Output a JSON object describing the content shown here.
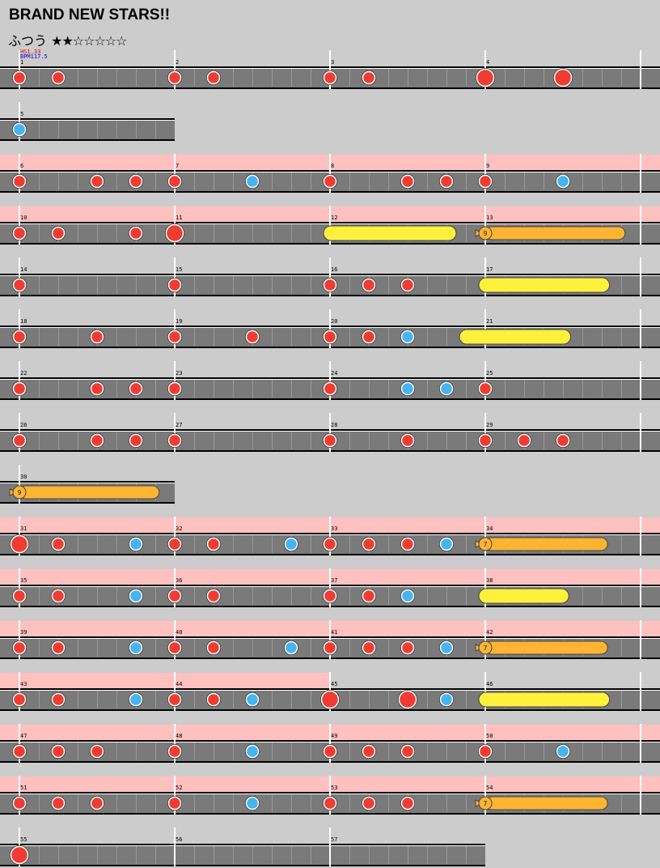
{
  "song": {
    "title": "BRAND NEW STARS!!",
    "difficulty_label": "ふつう",
    "stars_text": "★★☆☆☆☆☆",
    "stars_filled": 2,
    "stars_total": 7,
    "hs_text": "HS1.33",
    "bpm_text": "BPM117.5"
  },
  "colors": {
    "background": "#cccccc",
    "lane": "#7a7a7a",
    "gogo_band": "#ffc0c0",
    "don": "#f03c32",
    "ka": "#46b4f0",
    "drumroll": "#ffb432",
    "balloon_or_yellow_roll": "#fff03c"
  },
  "chart_data": {
    "type": "taiko_score",
    "beats_per_measure": 4,
    "subdivisions_per_measure": 8,
    "measures_per_row": 4,
    "note_types": [
      "don",
      "ka",
      "big_don",
      "drumroll",
      "big_drumroll",
      "balloon"
    ],
    "rows": [
      {
        "measures": [
          1,
          2,
          3,
          4
        ],
        "gogo_measures": 0,
        "notes": [
          {
            "m": 1,
            "b": 0,
            "t": "don"
          },
          {
            "m": 1,
            "b": 1,
            "t": "don"
          },
          {
            "m": 2,
            "b": 0,
            "t": "don"
          },
          {
            "m": 2,
            "b": 1,
            "t": "don"
          },
          {
            "m": 3,
            "b": 0,
            "t": "don"
          },
          {
            "m": 3,
            "b": 1,
            "t": "don"
          },
          {
            "m": 4,
            "b": 0,
            "t": "big_don"
          },
          {
            "m": 4,
            "b": 2,
            "t": "big_don"
          }
        ],
        "rolls": []
      },
      {
        "measures": [
          5
        ],
        "gogo_measures": 0,
        "notes": [
          {
            "m": 5,
            "b": 0,
            "t": "ka"
          }
        ],
        "rolls": []
      },
      {
        "measures": [
          6,
          7,
          8,
          9
        ],
        "gogo_measures": 4,
        "notes": [
          {
            "m": 6,
            "b": 0,
            "t": "don"
          },
          {
            "m": 6,
            "b": 2,
            "t": "don"
          },
          {
            "m": 6,
            "b": 3,
            "t": "don"
          },
          {
            "m": 7,
            "b": 0,
            "t": "don"
          },
          {
            "m": 7,
            "b": 2,
            "t": "ka"
          },
          {
            "m": 8,
            "b": 0,
            "t": "don"
          },
          {
            "m": 8,
            "b": 2,
            "t": "don"
          },
          {
            "m": 8,
            "b": 3,
            "t": "don"
          },
          {
            "m": 9,
            "b": 0,
            "t": "don"
          },
          {
            "m": 9,
            "b": 2,
            "t": "ka"
          }
        ],
        "rolls": []
      },
      {
        "measures": [
          10,
          11,
          12,
          13
        ],
        "gogo_measures": 4,
        "notes": [
          {
            "m": 10,
            "b": 0,
            "t": "don"
          },
          {
            "m": 10,
            "b": 1,
            "t": "don"
          },
          {
            "m": 10,
            "b": 3,
            "t": "don"
          },
          {
            "m": 11,
            "b": 0,
            "t": "big_don"
          }
        ],
        "rolls": [
          {
            "m": 12,
            "b": 0,
            "len": 3.25,
            "t": "big_drumroll",
            "color": "yellow"
          },
          {
            "m": 13,
            "b": 0,
            "len": 3.6,
            "t": "balloon",
            "count": "9"
          }
        ]
      },
      {
        "measures": [
          14,
          15,
          16,
          17
        ],
        "gogo_measures": 0,
        "notes": [
          {
            "m": 14,
            "b": 0,
            "t": "don"
          },
          {
            "m": 15,
            "b": 0,
            "t": "don"
          },
          {
            "m": 16,
            "b": 0,
            "t": "don"
          },
          {
            "m": 16,
            "b": 1,
            "t": "don"
          },
          {
            "m": 16,
            "b": 2,
            "t": "don"
          }
        ],
        "rolls": [
          {
            "m": 17,
            "b": 0,
            "len": 3.2,
            "t": "big_drumroll",
            "color": "yellow"
          }
        ]
      },
      {
        "measures": [
          18,
          19,
          20,
          21
        ],
        "gogo_measures": 0,
        "notes": [
          {
            "m": 18,
            "b": 0,
            "t": "don"
          },
          {
            "m": 18,
            "b": 2,
            "t": "don"
          },
          {
            "m": 19,
            "b": 0,
            "t": "don"
          },
          {
            "m": 19,
            "b": 2,
            "t": "don"
          },
          {
            "m": 20,
            "b": 0,
            "t": "don"
          },
          {
            "m": 20,
            "b": 1,
            "t": "don"
          },
          {
            "m": 20,
            "b": 2,
            "t": "ka"
          }
        ],
        "rolls": [
          {
            "m": 20,
            "b": 3.5,
            "len": 2.7,
            "t": "big_drumroll",
            "color": "yellow"
          }
        ]
      },
      {
        "measures": [
          22,
          23,
          24,
          25
        ],
        "gogo_measures": 0,
        "notes": [
          {
            "m": 22,
            "b": 0,
            "t": "don"
          },
          {
            "m": 22,
            "b": 2,
            "t": "don"
          },
          {
            "m": 22,
            "b": 3,
            "t": "don"
          },
          {
            "m": 23,
            "b": 0,
            "t": "don"
          },
          {
            "m": 24,
            "b": 0,
            "t": "don"
          },
          {
            "m": 24,
            "b": 2,
            "t": "ka"
          },
          {
            "m": 24,
            "b": 3,
            "t": "ka"
          },
          {
            "m": 25,
            "b": 0,
            "t": "don"
          }
        ],
        "rolls": []
      },
      {
        "measures": [
          26,
          27,
          28,
          29
        ],
        "gogo_measures": 0,
        "notes": [
          {
            "m": 26,
            "b": 0,
            "t": "don"
          },
          {
            "m": 26,
            "b": 2,
            "t": "don"
          },
          {
            "m": 26,
            "b": 3,
            "t": "don"
          },
          {
            "m": 27,
            "b": 0,
            "t": "don"
          },
          {
            "m": 28,
            "b": 0,
            "t": "don"
          },
          {
            "m": 28,
            "b": 2,
            "t": "don"
          },
          {
            "m": 29,
            "b": 0,
            "t": "don"
          },
          {
            "m": 29,
            "b": 1,
            "t": "don"
          },
          {
            "m": 29,
            "b": 2,
            "t": "don"
          }
        ],
        "rolls": []
      },
      {
        "measures": [
          30
        ],
        "gogo_measures": 0,
        "notes": [],
        "rolls": [
          {
            "m": 30,
            "b": 0,
            "len": 3.6,
            "t": "balloon",
            "count": "9"
          }
        ]
      },
      {
        "measures": [
          31,
          32,
          33,
          34
        ],
        "gogo_measures": 4,
        "notes": [
          {
            "m": 31,
            "b": 0,
            "t": "big_don"
          },
          {
            "m": 31,
            "b": 1,
            "t": "don"
          },
          {
            "m": 31,
            "b": 3,
            "t": "ka"
          },
          {
            "m": 32,
            "b": 0,
            "t": "don"
          },
          {
            "m": 32,
            "b": 1,
            "t": "don"
          },
          {
            "m": 32,
            "b": 3,
            "t": "ka"
          },
          {
            "m": 33,
            "b": 0,
            "t": "don"
          },
          {
            "m": 33,
            "b": 1,
            "t": "don"
          },
          {
            "m": 33,
            "b": 2,
            "t": "don"
          },
          {
            "m": 33,
            "b": 3,
            "t": "ka"
          }
        ],
        "rolls": [
          {
            "m": 34,
            "b": 0,
            "len": 3.15,
            "t": "balloon",
            "count": "7"
          }
        ]
      },
      {
        "measures": [
          35,
          36,
          37,
          38
        ],
        "gogo_measures": 4,
        "notes": [
          {
            "m": 35,
            "b": 0,
            "t": "don"
          },
          {
            "m": 35,
            "b": 1,
            "t": "don"
          },
          {
            "m": 35,
            "b": 3,
            "t": "ka"
          },
          {
            "m": 36,
            "b": 0,
            "t": "don"
          },
          {
            "m": 36,
            "b": 1,
            "t": "don"
          },
          {
            "m": 37,
            "b": 0,
            "t": "don"
          },
          {
            "m": 37,
            "b": 1,
            "t": "don"
          },
          {
            "m": 37,
            "b": 2,
            "t": "ka"
          }
        ],
        "rolls": [
          {
            "m": 38,
            "b": 0,
            "len": 2.15,
            "t": "big_drumroll",
            "color": "yellow"
          }
        ]
      },
      {
        "measures": [
          39,
          40,
          41,
          42
        ],
        "gogo_measures": 4,
        "notes": [
          {
            "m": 39,
            "b": 0,
            "t": "don"
          },
          {
            "m": 39,
            "b": 1,
            "t": "don"
          },
          {
            "m": 39,
            "b": 3,
            "t": "ka"
          },
          {
            "m": 40,
            "b": 0,
            "t": "don"
          },
          {
            "m": 40,
            "b": 1,
            "t": "don"
          },
          {
            "m": 40,
            "b": 3,
            "t": "ka"
          },
          {
            "m": 41,
            "b": 0,
            "t": "don"
          },
          {
            "m": 41,
            "b": 1,
            "t": "don"
          },
          {
            "m": 41,
            "b": 2,
            "t": "don"
          },
          {
            "m": 41,
            "b": 3,
            "t": "ka"
          }
        ],
        "rolls": [
          {
            "m": 42,
            "b": 0,
            "len": 3.15,
            "t": "balloon",
            "count": "7"
          }
        ]
      },
      {
        "measures": [
          43,
          44,
          45,
          46
        ],
        "gogo_measures": 2,
        "notes": [
          {
            "m": 43,
            "b": 0,
            "t": "don"
          },
          {
            "m": 43,
            "b": 1,
            "t": "don"
          },
          {
            "m": 43,
            "b": 3,
            "t": "ka"
          },
          {
            "m": 44,
            "b": 0,
            "t": "don"
          },
          {
            "m": 44,
            "b": 1,
            "t": "don"
          },
          {
            "m": 44,
            "b": 2,
            "t": "ka"
          },
          {
            "m": 45,
            "b": 0,
            "t": "big_don"
          },
          {
            "m": 45,
            "b": 2,
            "t": "big_don"
          },
          {
            "m": 45,
            "b": 3,
            "t": "ka"
          }
        ],
        "rolls": [
          {
            "m": 46,
            "b": 0,
            "len": 3.2,
            "t": "big_drumroll",
            "color": "yellow"
          }
        ]
      },
      {
        "measures": [
          47,
          48,
          49,
          50
        ],
        "gogo_measures": 4,
        "notes": [
          {
            "m": 47,
            "b": 0,
            "t": "don"
          },
          {
            "m": 47,
            "b": 1,
            "t": "don"
          },
          {
            "m": 47,
            "b": 2,
            "t": "don"
          },
          {
            "m": 48,
            "b": 0,
            "t": "don"
          },
          {
            "m": 48,
            "b": 2,
            "t": "ka"
          },
          {
            "m": 49,
            "b": 0,
            "t": "don"
          },
          {
            "m": 49,
            "b": 1,
            "t": "don"
          },
          {
            "m": 49,
            "b": 2,
            "t": "don"
          },
          {
            "m": 50,
            "b": 0,
            "t": "don"
          },
          {
            "m": 50,
            "b": 2,
            "t": "ka"
          }
        ],
        "rolls": []
      },
      {
        "measures": [
          51,
          52,
          53,
          54
        ],
        "gogo_measures": 4,
        "notes": [
          {
            "m": 51,
            "b": 0,
            "t": "don"
          },
          {
            "m": 51,
            "b": 1,
            "t": "don"
          },
          {
            "m": 51,
            "b": 2,
            "t": "don"
          },
          {
            "m": 52,
            "b": 0,
            "t": "don"
          },
          {
            "m": 52,
            "b": 2,
            "t": "ka"
          },
          {
            "m": 53,
            "b": 0,
            "t": "don"
          },
          {
            "m": 53,
            "b": 1,
            "t": "don"
          },
          {
            "m": 53,
            "b": 2,
            "t": "don"
          }
        ],
        "rolls": [
          {
            "m": 54,
            "b": 0,
            "len": 3.15,
            "t": "balloon",
            "count": "7"
          }
        ]
      },
      {
        "measures": [
          55,
          56,
          57
        ],
        "gogo_measures": 0,
        "notes": [
          {
            "m": 55,
            "b": 0,
            "t": "big_don"
          }
        ],
        "rolls": []
      }
    ]
  }
}
